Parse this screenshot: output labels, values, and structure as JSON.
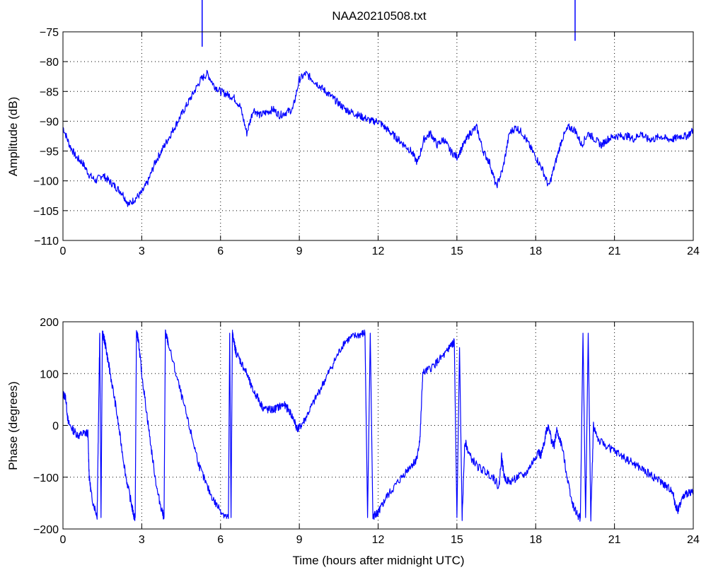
{
  "chart_data": [
    {
      "type": "line",
      "title": "NAA20210508.txt",
      "xlabel": "",
      "ylabel": "Amplitude (dB)",
      "xlim": [
        0,
        24
      ],
      "ylim": [
        -110,
        -75
      ],
      "xticks": [
        "0",
        "3",
        "6",
        "9",
        "12",
        "15",
        "18",
        "21",
        "24"
      ],
      "yticks": [
        "−75",
        "−80",
        "−85",
        "−90",
        "−95",
        "−100",
        "−105",
        "−110"
      ],
      "grid": true,
      "color": "#0000ff",
      "series": [
        {
          "x": [
            0,
            0.25,
            0.5,
            0.75,
            1.0,
            1.25,
            1.5,
            1.75,
            2.0,
            2.25,
            2.5,
            2.75,
            3.0,
            3.25,
            3.5,
            3.75,
            4.0,
            4.25,
            4.5,
            4.75,
            5.0,
            5.25,
            5.5,
            5.75,
            6.0,
            6.25,
            6.5,
            6.75,
            7.0,
            7.25,
            7.5,
            7.75,
            8.0,
            8.25,
            8.5,
            8.75,
            9.0,
            9.25,
            9.5,
            9.75,
            10.0,
            10.25,
            10.5,
            10.75,
            11.0,
            11.25,
            11.5,
            11.75,
            12.0,
            12.25,
            12.5,
            12.75,
            13.0,
            13.25,
            13.5,
            13.75,
            14.0,
            14.25,
            14.5,
            14.75,
            15.0,
            15.25,
            15.5,
            15.75,
            16.0,
            16.25,
            16.5,
            16.75,
            17.0,
            17.25,
            17.5,
            17.75,
            18.0,
            18.25,
            18.5,
            18.75,
            19.0,
            19.25,
            19.5,
            19.75,
            20.0,
            20.25,
            20.5,
            20.75,
            21.0,
            21.25,
            21.5,
            21.75,
            22.0,
            22.25,
            22.5,
            22.75,
            23.0,
            23.25,
            23.5,
            23.75,
            24.0
          ],
          "y": [
            -91,
            -94,
            -96,
            -97,
            -99,
            -100,
            -99,
            -100,
            -101,
            -102,
            -104,
            -103,
            -102,
            -100,
            -97,
            -95,
            -93,
            -91,
            -89,
            -87,
            -85,
            -83,
            -82,
            -84,
            -85,
            -85.5,
            -86,
            -87.5,
            -92,
            -88,
            -89,
            -88.5,
            -88,
            -89,
            -88.5,
            -88,
            -83,
            -82,
            -83,
            -84,
            -85,
            -86,
            -87,
            -88,
            -88.5,
            -89,
            -89.5,
            -90,
            -90,
            -91,
            -92,
            -93,
            -94,
            -95,
            -97,
            -93,
            -92,
            -94,
            -93,
            -95,
            -96,
            -94,
            -92,
            -91,
            -95,
            -97,
            -101,
            -98,
            -92,
            -91,
            -92,
            -94,
            -96,
            -98,
            -101,
            -97,
            -93,
            -91,
            -91.5,
            -94,
            -92,
            -93,
            -94,
            -93,
            -92.5,
            -92.5,
            -92.5,
            -93,
            -92,
            -93,
            -93,
            -92.5,
            -93,
            -93,
            -92.5,
            -92.5,
            -91.5
          ]
        }
      ],
      "spikes": [
        {
          "x": 5.3,
          "y": -77.5
        },
        {
          "x": 19.5,
          "y": -76.5
        }
      ]
    },
    {
      "type": "line",
      "title": "",
      "xlabel": "Time (hours after midnight UTC)",
      "ylabel": "Phase (degrees)",
      "xlim": [
        0,
        24
      ],
      "ylim": [
        -200,
        200
      ],
      "xticks": [
        "0",
        "3",
        "6",
        "9",
        "12",
        "15",
        "18",
        "21",
        "24"
      ],
      "yticks": [
        "200",
        "100",
        "0",
        "−100",
        "−200"
      ],
      "grid": true,
      "color": "#0000ff",
      "series": [
        {
          "x": [
            0,
            0.1,
            0.2,
            0.4,
            0.6,
            0.8,
            0.95,
            1.0,
            1.1,
            1.3,
            1.35,
            1.4,
            1.45,
            1.5,
            1.55,
            1.6,
            1.7,
            1.8,
            2.0,
            2.2,
            2.4,
            2.6,
            2.7,
            2.75,
            2.8,
            2.85,
            2.9,
            3.0,
            3.2,
            3.4,
            3.6,
            3.8,
            3.85,
            3.9,
            3.95,
            4.0,
            4.3,
            4.6,
            4.9,
            5.2,
            5.5,
            5.8,
            6.1,
            6.3,
            6.35,
            6.4,
            6.45,
            6.5,
            6.55,
            6.6,
            6.8,
            7.0,
            7.2,
            7.4,
            7.6,
            7.8,
            8.0,
            8.2,
            8.4,
            8.6,
            8.8,
            8.9,
            9.0,
            9.2,
            9.5,
            9.8,
            10.1,
            10.4,
            10.7,
            11.0,
            11.3,
            11.5,
            11.6,
            11.7,
            11.8,
            11.9,
            12.0,
            12.1,
            12.3,
            12.6,
            12.9,
            13.2,
            13.4,
            13.5,
            13.6,
            13.7,
            14.0,
            14.3,
            14.6,
            14.7,
            14.8,
            14.9,
            15.0,
            15.1,
            15.2,
            15.3,
            15.5,
            15.8,
            16.1,
            16.4,
            16.6,
            16.7,
            16.8,
            17.0,
            17.3,
            17.6,
            17.9,
            18.1,
            18.2,
            18.3,
            18.4,
            18.5,
            18.6,
            18.7,
            18.8,
            19.0,
            19.2,
            19.4,
            19.6,
            19.7,
            19.8,
            19.9,
            20.0,
            20.1,
            20.2,
            20.4,
            20.7,
            21.0,
            21.3,
            21.6,
            21.9,
            22.2,
            22.5,
            22.8,
            23.0,
            23.2,
            23.3,
            23.4,
            23.6,
            23.8,
            24.0
          ],
          "y": [
            60,
            55,
            5,
            -10,
            -20,
            -15,
            -15,
            -100,
            -140,
            -175,
            0,
            178,
            -178,
            178,
            170,
            160,
            130,
            100,
            40,
            -30,
            -100,
            -150,
            -175,
            -178,
            178,
            170,
            150,
            100,
            20,
            -60,
            -130,
            -170,
            -178,
            178,
            170,
            160,
            100,
            40,
            -20,
            -80,
            -120,
            -150,
            -170,
            -180,
            178,
            -178,
            178,
            165,
            150,
            140,
            120,
            100,
            70,
            55,
            35,
            30,
            30,
            35,
            40,
            30,
            10,
            -5,
            -5,
            10,
            40,
            70,
            100,
            130,
            160,
            170,
            175,
            178,
            -178,
            178,
            -178,
            -170,
            -170,
            -160,
            -140,
            -120,
            -100,
            -80,
            -70,
            -60,
            -20,
            100,
            110,
            125,
            140,
            150,
            155,
            160,
            -178,
            150,
            -178,
            -30,
            -60,
            -80,
            -90,
            -100,
            -120,
            -60,
            -100,
            -110,
            -100,
            -95,
            -70,
            -50,
            -60,
            -40,
            -10,
            0,
            -30,
            -40,
            -10,
            -40,
            -100,
            -150,
            -175,
            -178,
            178,
            -178,
            178,
            -178,
            0,
            -30,
            -40,
            -50,
            -60,
            -70,
            -80,
            -90,
            -100,
            -110,
            -120,
            -125,
            -150,
            -165,
            -140,
            -130,
            -125
          ]
        }
      ]
    }
  ]
}
